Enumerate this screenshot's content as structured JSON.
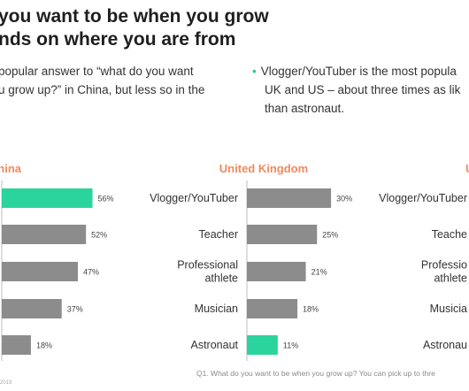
{
  "heading": {
    "line1": "you want to be when you grow",
    "line2": "nds on where you are from"
  },
  "bullets": {
    "left_line1": "popular answer to “what do you want",
    "left_line2": "u grow up?” in China, but less so in the",
    "right_line1": "Vlogger/YouTuber is the most popula",
    "right_line2": "UK and US – about three times as lik",
    "right_line3": "than astronaut."
  },
  "footnote": "Q1. What do you want to be when you grow up? You can pick up to thre",
  "footnote_left": "2019",
  "colors": {
    "bar_gray": "#8c8c8c",
    "bar_highlight": "#2bd49c",
    "panel_title": "#f08a5d",
    "bullet_dot": "#2bc59a"
  },
  "chart_data": [
    {
      "type": "bar",
      "orientation": "horizontal",
      "title": "hina",
      "categories": [
        "",
        "",
        "",
        "",
        ""
      ],
      "values": [
        56,
        52,
        47,
        37,
        18
      ],
      "value_labels": [
        "56%",
        "52%",
        "47%",
        "37%",
        "18%"
      ],
      "highlight_index": 0
    },
    {
      "type": "bar",
      "orientation": "horizontal",
      "title": "United Kingdom",
      "categories": [
        "Vlogger/YouTuber",
        "Teacher",
        "Professional athlete",
        "Musician",
        "Astronaut"
      ],
      "category_lines": [
        [
          "Vlogger/YouTuber"
        ],
        [
          "Teacher"
        ],
        [
          "Professional",
          "athlete"
        ],
        [
          "Musician"
        ],
        [
          "Astronaut"
        ]
      ],
      "values": [
        30,
        25,
        21,
        18,
        11
      ],
      "value_labels": [
        "30%",
        "25%",
        "21%",
        "18%",
        "11%"
      ],
      "highlight_index": 4
    },
    {
      "type": "bar",
      "orientation": "horizontal",
      "title": "U",
      "categories": [
        "Vlogger/YouTuber",
        "Teacher",
        "Professional athlete",
        "Musician",
        "Astronaut"
      ],
      "category_lines": [
        [
          "Vlogger/YouTuber"
        ],
        [
          "Teache"
        ],
        [
          "Professio",
          "athlete"
        ],
        [
          "Musicia"
        ],
        [
          "Astronau"
        ]
      ],
      "values": [
        null,
        null,
        null,
        null,
        null
      ],
      "value_labels": [
        "",
        "",
        "",
        "",
        ""
      ],
      "highlight_index": -1
    }
  ]
}
